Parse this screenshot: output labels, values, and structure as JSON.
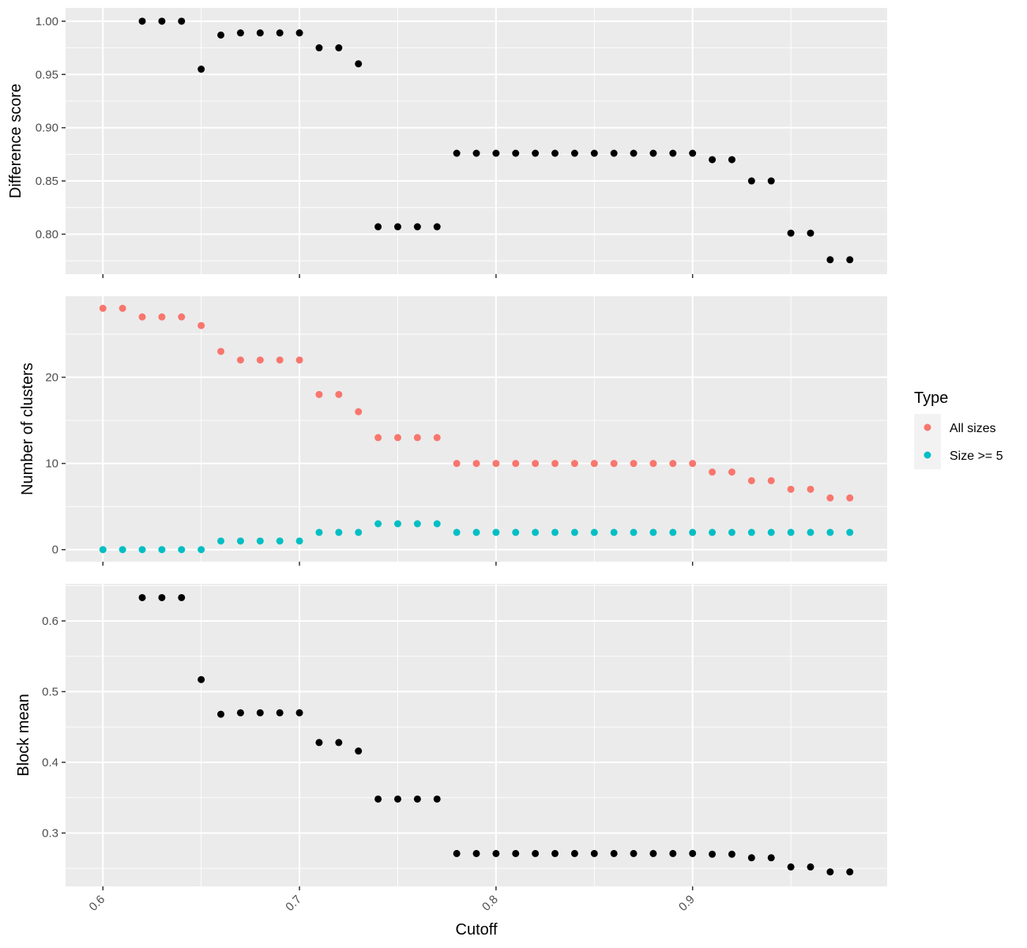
{
  "chart_data": {
    "type": "scatter",
    "x_label": "Cutoff",
    "x_ticks": [
      0.6,
      0.7,
      0.8,
      0.9
    ],
    "x_tick_labels": [
      "0.6",
      "0.7",
      "0.8",
      "0.9"
    ],
    "x_range": [
      0.581,
      0.999
    ],
    "x": [
      0.6,
      0.61,
      0.62,
      0.63,
      0.64,
      0.65,
      0.66,
      0.67,
      0.68,
      0.69,
      0.7,
      0.71,
      0.72,
      0.73,
      0.74,
      0.75,
      0.76,
      0.77,
      0.78,
      0.79,
      0.8,
      0.81,
      0.82,
      0.83,
      0.84,
      0.85,
      0.86,
      0.87,
      0.88,
      0.89,
      0.9,
      0.91,
      0.92,
      0.93,
      0.94,
      0.95,
      0.96,
      0.97,
      0.98
    ],
    "panels": [
      {
        "name": "difference",
        "ylabel": "Difference score",
        "yrange": [
          0.7625,
          1.0125
        ],
        "yticks": [
          0.8,
          0.85,
          0.9,
          0.95,
          1.0
        ],
        "ytick_labels": [
          "0.80",
          "0.85",
          "0.90",
          "0.95",
          "1.00"
        ],
        "ylines": [
          0.8,
          0.85,
          0.9,
          0.95,
          1.0
        ],
        "series": [
          {
            "color": "#000000",
            "values": [
              null,
              null,
              1.0,
              1.0,
              1.0,
              0.955,
              0.987,
              0.989,
              0.989,
              0.989,
              0.989,
              0.975,
              0.975,
              0.96,
              0.807,
              0.807,
              0.807,
              0.807,
              0.876,
              0.876,
              0.876,
              0.876,
              0.876,
              0.876,
              0.876,
              0.876,
              0.876,
              0.876,
              0.876,
              0.876,
              0.876,
              0.87,
              0.87,
              0.85,
              0.85,
              0.801,
              0.801,
              0.776,
              0.776
            ]
          }
        ]
      },
      {
        "name": "clusters",
        "ylabel": "Number of clusters",
        "yrange": [
          -1.4,
          29.4
        ],
        "yticks": [
          0,
          10,
          20
        ],
        "ytick_labels": [
          "0",
          "10",
          "20"
        ],
        "ylines": [
          0,
          10,
          20
        ],
        "series": [
          {
            "name": "All sizes",
            "color": "#F8766D",
            "values": [
              28,
              28,
              27,
              27,
              27,
              26,
              23,
              22,
              22,
              22,
              22,
              18,
              18,
              16,
              13,
              13,
              13,
              13,
              10,
              10,
              10,
              10,
              10,
              10,
              10,
              10,
              10,
              10,
              10,
              10,
              10,
              9,
              9,
              8,
              8,
              7,
              7,
              6,
              6
            ]
          },
          {
            "name": "Size >= 5",
            "color": "#00BFC4",
            "values": [
              0,
              0,
              0,
              0,
              0,
              0,
              1,
              1,
              1,
              1,
              1,
              2,
              2,
              2,
              3,
              3,
              3,
              3,
              2,
              2,
              2,
              2,
              2,
              2,
              2,
              2,
              2,
              2,
              2,
              2,
              2,
              2,
              2,
              2,
              2,
              2,
              2,
              2,
              2
            ]
          }
        ]
      },
      {
        "name": "block",
        "ylabel": "Block mean",
        "yrange": [
          0.2245,
          0.6525
        ],
        "yticks": [
          0.3,
          0.4,
          0.5,
          0.6
        ],
        "ytick_labels": [
          "0.3",
          "0.4",
          "0.5",
          "0.6"
        ],
        "ylines": [
          0.3,
          0.4,
          0.5,
          0.6
        ],
        "series": [
          {
            "color": "#000000",
            "values": [
              null,
              null,
              0.633,
              0.633,
              0.633,
              0.517,
              0.468,
              0.47,
              0.47,
              0.47,
              0.47,
              0.428,
              0.428,
              0.416,
              0.348,
              0.348,
              0.348,
              0.348,
              0.271,
              0.271,
              0.271,
              0.271,
              0.271,
              0.271,
              0.271,
              0.271,
              0.271,
              0.271,
              0.271,
              0.271,
              0.271,
              0.27,
              0.27,
              0.265,
              0.265,
              0.252,
              0.252,
              0.245,
              0.245
            ]
          }
        ]
      }
    ],
    "legend": {
      "title": "Type",
      "position": "right",
      "entries": [
        {
          "label": "All sizes",
          "color": "#F8766D"
        },
        {
          "label": "Size >= 5",
          "color": "#00BFC4"
        }
      ]
    },
    "grid": true,
    "panel_background": "#EBEBEB",
    "grid_color": "#FFFFFF"
  }
}
